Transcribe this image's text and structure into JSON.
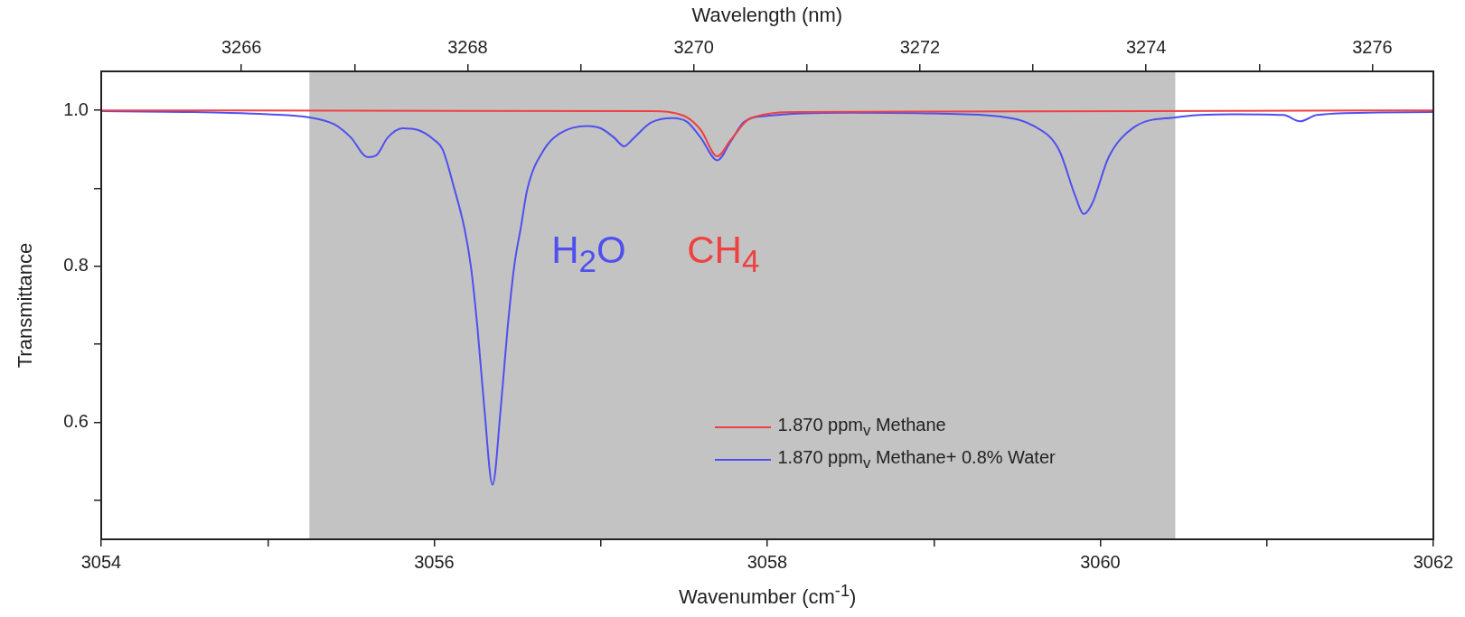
{
  "chart_data": {
    "type": "line",
    "xlabel": "Wavenumber (cm$^{-1}$)",
    "ylabel": "Transmittance",
    "x2label": "Wavelength (nm)",
    "xlim": [
      3054,
      3062
    ],
    "xticks": [
      3054,
      {
        "value": 3055,
        "label": null
      },
      3056,
      {
        "value": 3057,
        "label": null
      },
      3058,
      {
        "value": 3059,
        "label": null
      },
      3060,
      {
        "value": 3061,
        "label": null
      },
      3062
    ],
    "x2lim": [
      3264.76,
      3276.54
    ],
    "x2ticks": [
      3266,
      {
        "value": 3267,
        "label": null
      },
      3268,
      {
        "value": 3269,
        "label": null
      },
      3270,
      {
        "value": 3271,
        "label": null
      },
      3272,
      {
        "value": 3273,
        "label": null
      },
      3274,
      {
        "value": 3275,
        "label": null
      },
      3276
    ],
    "ylim": [
      0.45,
      1.05
    ],
    "yticks": [
      {
        "value": 0.5,
        "label": null
      },
      {
        "value": 0.6,
        "label": "0.6"
      },
      {
        "value": 0.7,
        "label": null
      },
      {
        "value": 0.8,
        "label": "0.8"
      },
      {
        "value": 0.9,
        "label": null
      },
      {
        "value": 1.0,
        "label": "1.0"
      }
    ],
    "grid": false,
    "legend": "bottom",
    "marker": "none",
    "line_style": "solid",
    "bands": [
      {
        "axis": "x",
        "from": 3055.25,
        "to": 3060.45,
        "color": "#c3c3c3"
      }
    ],
    "annotations": [
      "H$_{2}$O",
      "CH$_{4}$"
    ],
    "series": [
      {
        "name": "1.870 ppm$_{v}$ Methane",
        "color": "#f04040",
        "x": [
          3054,
          3057.3,
          3057.5,
          3057.6,
          3057.7,
          3057.78,
          3057.9,
          3058.2,
          3062
        ],
        "values": [
          1.0,
          0.999,
          0.993,
          0.975,
          0.941,
          0.962,
          0.99,
          0.998,
          1.0
        ]
      },
      {
        "name": "1.870 ppm$_{v}$ Methane+ 0.8% Water",
        "color": "#4f4ff0",
        "x": [
          3054,
          3054.5,
          3055,
          3055.25,
          3055.4,
          3055.5,
          3055.6,
          3055.65,
          3055.72,
          3055.81,
          3055.9,
          3056,
          3056.05,
          3056.12,
          3056.18,
          3056.22,
          3056.26,
          3056.3,
          3056.35,
          3056.4,
          3056.44,
          3056.48,
          3056.52,
          3056.56,
          3056.66,
          3056.75,
          3056.92,
          3057,
          3057.08,
          3057.14,
          3057.2,
          3057.3,
          3057.43,
          3057.52,
          3057.6,
          3057.7,
          3057.78,
          3057.86,
          3058,
          3058.5,
          3059,
          3059.4,
          3059.6,
          3059.75,
          3059.85,
          3059.9,
          3059.95,
          3060.05,
          3060.2,
          3060.45,
          3060.8,
          3061.1,
          3061.2,
          3061.3,
          3061.6,
          3062
        ],
        "values": [
          0.999,
          0.998,
          0.995,
          0.991,
          0.982,
          0.965,
          0.94,
          0.942,
          0.965,
          0.977,
          0.975,
          0.962,
          0.95,
          0.9,
          0.85,
          0.8,
          0.72,
          0.62,
          0.52,
          0.62,
          0.72,
          0.8,
          0.85,
          0.9,
          0.95,
          0.97,
          0.98,
          0.977,
          0.965,
          0.954,
          0.965,
          0.984,
          0.99,
          0.985,
          0.965,
          0.936,
          0.96,
          0.985,
          0.993,
          0.997,
          0.996,
          0.992,
          0.98,
          0.95,
          0.89,
          0.867,
          0.88,
          0.94,
          0.978,
          0.991,
          0.995,
          0.994,
          0.986,
          0.994,
          0.997,
          0.998
        ]
      }
    ]
  }
}
